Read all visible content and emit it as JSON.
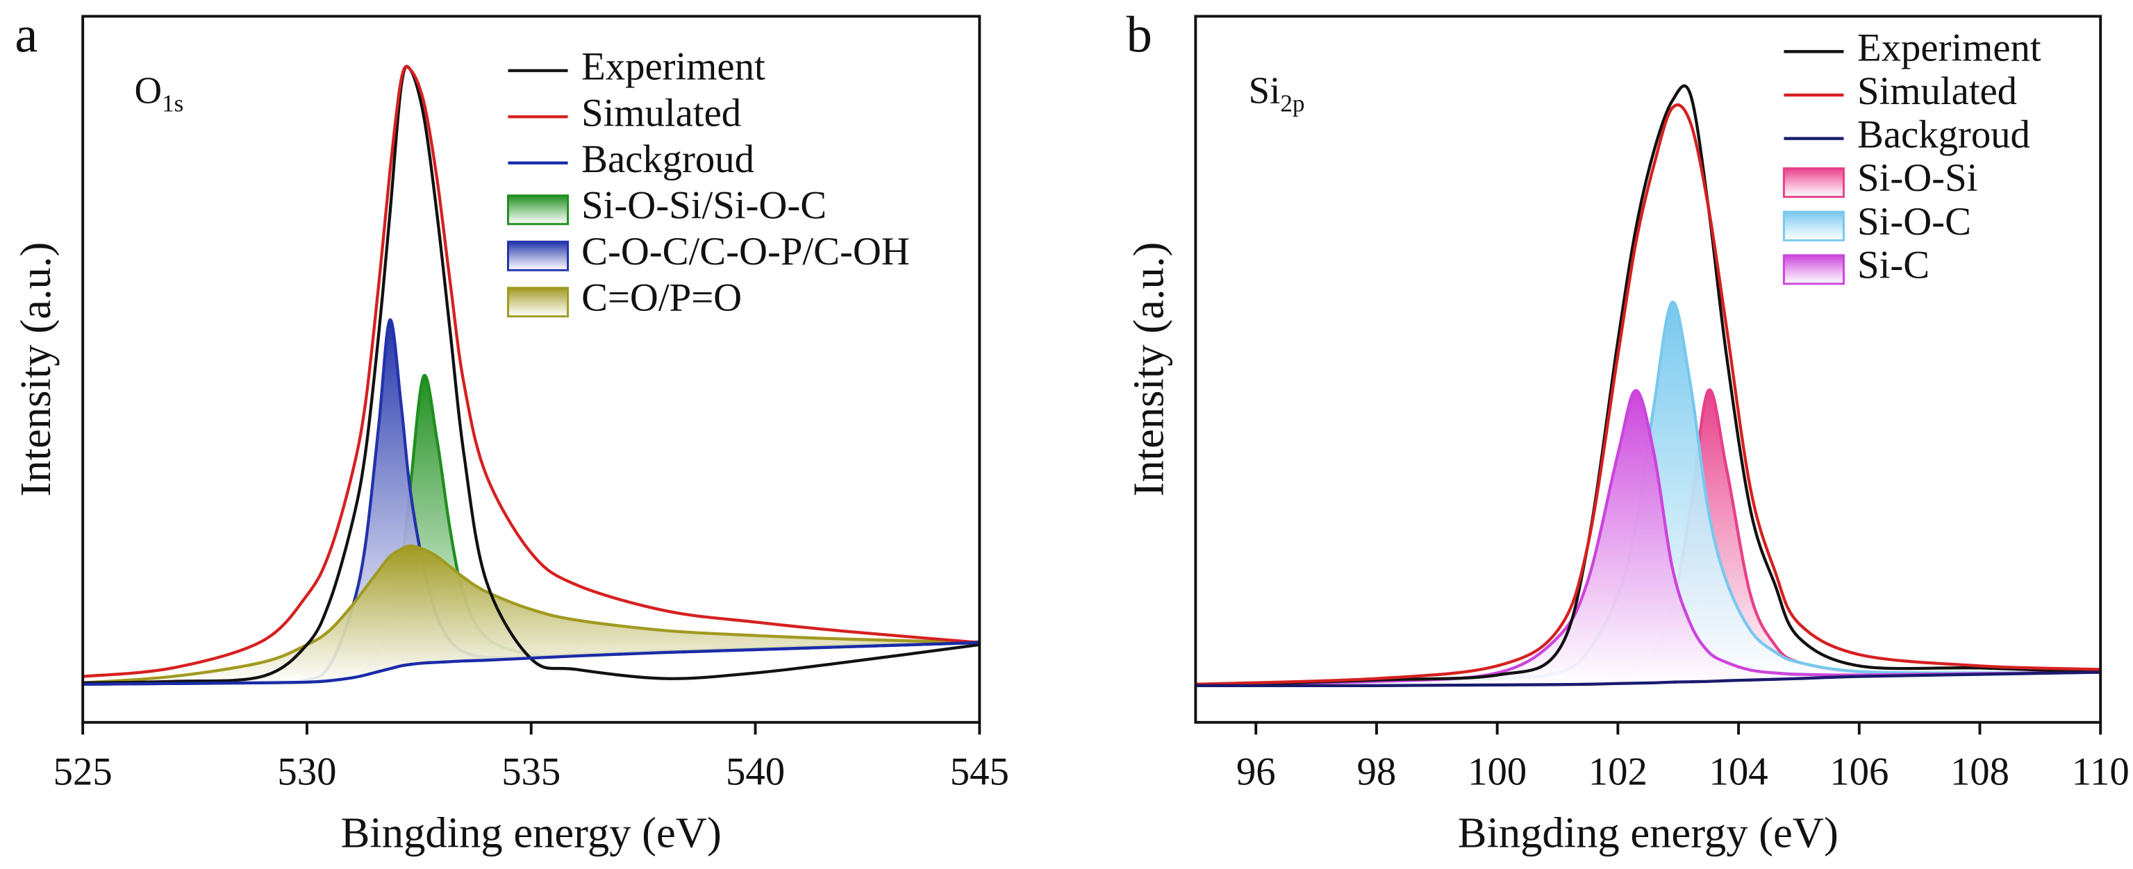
{
  "chart_data": [
    {
      "type": "line",
      "panel_label": "a",
      "annotation": "O",
      "annotation_sub": "1s",
      "xlabel": "Bingding energy (eV)",
      "ylabel": "Intensity (a.u.)",
      "x": [
        525,
        527,
        529,
        530,
        530.5,
        531,
        531.3,
        531.6,
        531.85,
        532.1,
        532.3,
        532.6,
        532.9,
        533.2,
        533.5,
        534,
        535,
        536,
        538,
        540,
        542,
        545
      ],
      "xlim": [
        525,
        545
      ],
      "xticks": [
        525,
        530,
        535,
        540,
        545
      ],
      "ylim": [
        0,
        100
      ],
      "series": [
        {
          "name": "Experiment",
          "color": "#111111",
          "style": "line",
          "values": [
            5.6,
            5.8,
            6.5,
            11,
            17,
            28,
            38,
            55,
            72,
            90,
            92.5,
            86,
            72,
            55,
            38,
            20,
            9,
            7.5,
            6.2,
            7,
            8.5,
            11
          ]
        },
        {
          "name": "Simulated",
          "color": "#d62020",
          "style": "line",
          "values": [
            6.5,
            7.7,
            11.5,
            18,
            24,
            35,
            45,
            62,
            78,
            91,
            92.5,
            88,
            77,
            62,
            48,
            35,
            24,
            19.5,
            15.8,
            14.2,
            12.9,
            11.3
          ]
        },
        {
          "name": "Backgroud",
          "color": "#1a2aa8",
          "style": "baseline",
          "values": [
            5.4,
            5.5,
            5.6,
            5.7,
            5.9,
            6.3,
            6.7,
            7.2,
            7.6,
            8.0,
            8.2,
            8.4,
            8.5,
            8.6,
            8.7,
            8.8,
            9.1,
            9.4,
            9.9,
            10.3,
            10.7,
            11.3
          ]
        },
        {
          "name": "Si-O-Si/Si-O-C",
          "color": "#1f8f1f",
          "style": "area",
          "values": [
            5.4,
            5.5,
            5.6,
            5.7,
            5.9,
            6.5,
            7.5,
            10,
            14,
            22,
            33,
            49,
            40,
            27,
            18,
            12,
            9.6,
            9.6,
            10.1,
            10.5,
            10.9,
            11.4
          ]
        },
        {
          "name": "C-O-C/C-O-P/C-OH",
          "color": "#2233aa",
          "style": "area",
          "values": [
            5.4,
            5.5,
            5.7,
            6,
            8,
            16,
            25,
            42,
            57,
            45,
            33,
            22,
            15,
            11.5,
            10,
            9.2,
            9.2,
            9.5,
            9.9,
            10.3,
            10.7,
            11.3
          ]
        },
        {
          "name": "C=O/P=O",
          "color": "#a09a20",
          "style": "area",
          "values": [
            5.6,
            6.5,
            8.5,
            11,
            13,
            16.5,
            19,
            21.5,
            23.5,
            24.5,
            25,
            24.5,
            23.5,
            22,
            20.5,
            18.5,
            16,
            14.5,
            13,
            12.3,
            11.8,
            11.3
          ]
        }
      ]
    },
    {
      "type": "line",
      "panel_label": "b",
      "annotation": "Si",
      "annotation_sub": "2p",
      "xlabel": "Bingding energy (eV)",
      "ylabel": "Intensity (a.u.)",
      "x": [
        95,
        98,
        100,
        101,
        101.5,
        102,
        102.3,
        102.6,
        102.9,
        103.2,
        103.5,
        103.8,
        104.2,
        104.6,
        105,
        106,
        108,
        110
      ],
      "xlim": [
        95,
        110
      ],
      "xticks": [
        96,
        98,
        100,
        102,
        104,
        106,
        108,
        110
      ],
      "ylim": [
        0,
        100
      ],
      "series": [
        {
          "name": "Experiment",
          "color": "#111111",
          "style": "line",
          "values": [
            5.2,
            6,
            6.7,
            10,
            25,
            54,
            70,
            81,
            88,
            89,
            73,
            52,
            30,
            19.6,
            12,
            8,
            7.7,
            7.1
          ]
        },
        {
          "name": "Simulated",
          "color": "#d62020",
          "style": "line",
          "values": [
            5.4,
            6.2,
            8,
            13,
            25,
            52,
            68,
            79,
            87,
            85,
            73,
            56,
            33,
            21.5,
            14,
            9.6,
            8,
            7.5
          ]
        },
        {
          "name": "Backgroud",
          "color": "#1a1a6e",
          "style": "baseline",
          "values": [
            5.2,
            5.2,
            5.3,
            5.35,
            5.4,
            5.5,
            5.55,
            5.6,
            5.7,
            5.75,
            5.8,
            5.9,
            6,
            6.1,
            6.2,
            6.5,
            6.8,
            7.1
          ]
        },
        {
          "name": "Si-O-Si",
          "color": "#e8408a",
          "style": "area",
          "values": [
            5.2,
            5.3,
            5.4,
            5.6,
            5.8,
            6.5,
            7.5,
            10,
            16,
            30,
            47,
            36,
            18,
            11,
            8.5,
            7,
            6.9,
            7.1
          ]
        },
        {
          "name": "Si-O-C",
          "color": "#78c8ee",
          "style": "area",
          "values": [
            5.3,
            5.6,
            6.2,
            7,
            10,
            18,
            28,
            45,
            59.5,
            48,
            30,
            20,
            13,
            10,
            8.5,
            7.2,
            7,
            7.1
          ]
        },
        {
          "name": "Si-C",
          "color": "#cc44dd",
          "style": "area",
          "values": [
            5.4,
            5.8,
            7,
            12,
            20,
            38,
            47,
            38,
            22,
            14,
            10,
            8.5,
            7.4,
            7,
            6.8,
            6.7,
            6.9,
            7.1
          ]
        }
      ]
    }
  ]
}
